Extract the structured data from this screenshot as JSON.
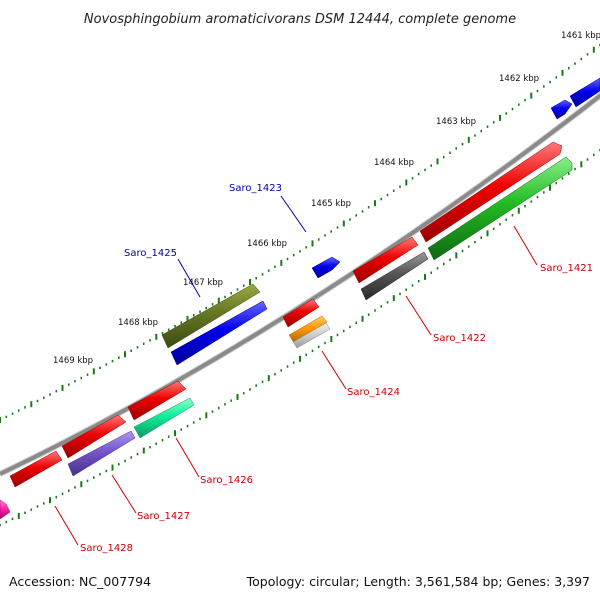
{
  "title": "Novosphingobium aromaticivorans DSM 12444, complete genome",
  "footer": {
    "accession": "Accession: NC_007794",
    "summary": "Topology: circular; Length: 3,561,584 bp; Genes: 3,397"
  },
  "kbp_labels": [
    "1461 kbp",
    "1462 kbp",
    "1463 kbp",
    "1464 kbp",
    "1465 kbp",
    "1466 kbp",
    "1467 kbp",
    "1468 kbp",
    "1469 kbp"
  ],
  "gene_labels": [
    {
      "id": "saro_1421",
      "text": "Saro_1421",
      "color": "#cc0000"
    },
    {
      "id": "saro_1422",
      "text": "Saro_1422",
      "color": "#cc0000"
    },
    {
      "id": "saro_1423",
      "text": "Saro_1423",
      "color": "#0000b0"
    },
    {
      "id": "saro_1424",
      "text": "Saro_1424",
      "color": "#cc0000"
    },
    {
      "id": "saro_1425",
      "text": "Saro_1425",
      "color": "#0000b0"
    },
    {
      "id": "saro_1426",
      "text": "Saro_1426",
      "color": "#cc0000"
    },
    {
      "id": "saro_1427",
      "text": "Saro_1427",
      "color": "#cc0000"
    },
    {
      "id": "saro_1428",
      "text": "Saro_1428",
      "color": "#cc0000"
    }
  ],
  "colors": {
    "backbone": "#888888",
    "tick": "#1a7a1a",
    "red": "#ee0000",
    "blue": "#0000ee",
    "green": "#22bb22",
    "olive": "#667722",
    "gray": "#555555",
    "orange": "#ff9900",
    "teal": "#11ee99",
    "purple": "#7755cc",
    "magenta": "#ff22aa"
  }
}
